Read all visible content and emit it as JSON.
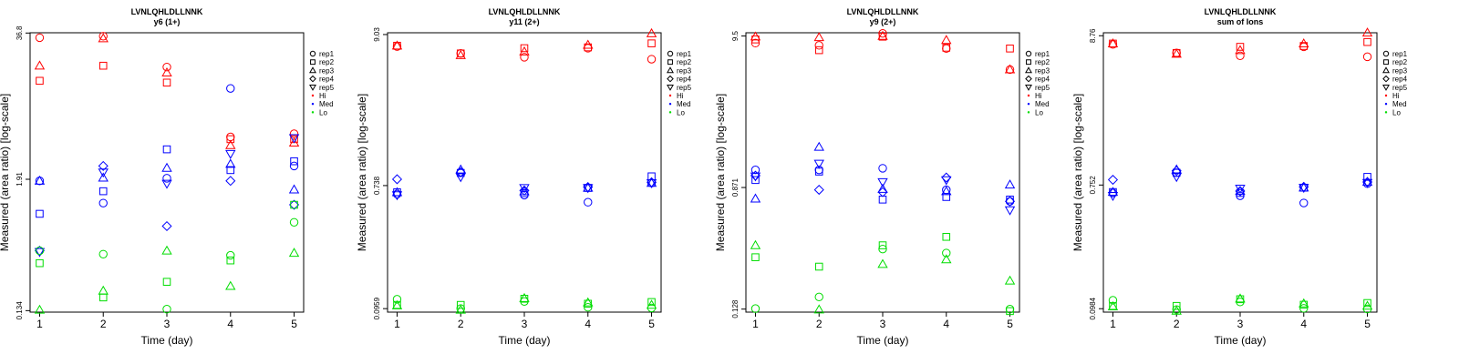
{
  "figure": {
    "background": "#ffffff",
    "colors": {
      "Hi": "#ff0000",
      "Med": "#0000ff",
      "Lo": "#00dd00"
    }
  },
  "legend": [
    {
      "label": "rep1",
      "shape": "circle"
    },
    {
      "label": "rep2",
      "shape": "square"
    },
    {
      "label": "rep3",
      "shape": "triangle-up"
    },
    {
      "label": "rep4",
      "shape": "diamond"
    },
    {
      "label": "rep5",
      "shape": "triangle-down"
    },
    {
      "label": "Hi",
      "shape": "dot",
      "color": "#ff0000"
    },
    {
      "label": "Med",
      "shape": "dot",
      "color": "#0000ff"
    },
    {
      "label": "Lo",
      "shape": "dot",
      "color": "#00dd00"
    }
  ],
  "chart_data": [
    {
      "type": "scatter",
      "title": "LVNLQHLDLLNNK",
      "subtitle": "y6 (1+)",
      "xlabel": "Time (day)",
      "ylabel": "Measured (area ratio) [log-scale]",
      "yscale": "log",
      "ylim": [
        0.13,
        37
      ],
      "xlim": [
        0.85,
        5.15
      ],
      "xticks": [
        "1",
        "2",
        "3",
        "4",
        "5"
      ],
      "yticks": [
        {
          "value": 36.8,
          "label": "36.8"
        },
        {
          "value": 1.91,
          "label": "1.91"
        },
        {
          "value": 0.134,
          "label": "0.134"
        }
      ],
      "legend_position": "right",
      "grid": false,
      "series": [
        {
          "name": "Hi",
          "rep": "rep1",
          "x": [
            1,
            2,
            3,
            4,
            5
          ],
          "y": [
            33.5,
            34.5,
            18.5,
            4.5,
            4.8
          ]
        },
        {
          "name": "Hi",
          "rep": "rep2",
          "x": [
            1,
            2,
            3,
            4,
            5
          ],
          "y": [
            14.0,
            19.0,
            13.5,
            4.3,
            4.3
          ]
        },
        {
          "name": "Hi",
          "rep": "rep3",
          "x": [
            1,
            2,
            3,
            4,
            5
          ],
          "y": [
            19.0,
            33.0,
            16.5,
            3.8,
            4.0
          ]
        },
        {
          "name": "Med",
          "rep": "rep1",
          "x": [
            1,
            2,
            3,
            4,
            5
          ],
          "y": [
            1.85,
            1.18,
            1.95,
            12.0,
            2.5
          ]
        },
        {
          "name": "Med",
          "rep": "rep2",
          "x": [
            1,
            2,
            3,
            4,
            5
          ],
          "y": [
            0.95,
            1.5,
            3.5,
            2.3,
            2.75
          ]
        },
        {
          "name": "Med",
          "rep": "rep3",
          "x": [
            1,
            2,
            3,
            4,
            5
          ],
          "y": [
            1.85,
            1.97,
            2.4,
            2.6,
            1.55
          ]
        },
        {
          "name": "Med",
          "rep": "rep4",
          "x": [
            1,
            2,
            3,
            4,
            5
          ],
          "y": [
            0.45,
            2.5,
            0.74,
            1.85,
            1.14
          ]
        },
        {
          "name": "Med",
          "rep": "rep5",
          "x": [
            1,
            2,
            3,
            4,
            5
          ],
          "y": [
            0.44,
            2.2,
            1.75,
            3.2,
            4.4
          ]
        },
        {
          "name": "Lo",
          "rep": "rep1",
          "x": [
            1,
            2,
            3,
            4,
            5
          ],
          "y": [
            0.45,
            0.42,
            0.138,
            0.41,
            0.8
          ]
        },
        {
          "name": "Lo",
          "rep": "rep2",
          "x": [
            1,
            2,
            3,
            4,
            5
          ],
          "y": [
            0.35,
            0.175,
            0.24,
            0.37,
            1.14
          ]
        },
        {
          "name": "Lo",
          "rep": "rep3",
          "x": [
            1,
            2,
            3,
            4,
            5
          ],
          "y": [
            0.136,
            0.2,
            0.45,
            0.22,
            0.43
          ]
        }
      ]
    },
    {
      "type": "scatter",
      "title": "LVNLQHLDLLNNK",
      "subtitle": "y11 (2+)",
      "xlabel": "Time (day)",
      "ylabel": "Measured (area ratio) [log-scale]",
      "yscale": "log",
      "ylim": [
        0.0905,
        9.3
      ],
      "xlim": [
        0.85,
        5.15
      ],
      "xticks": [
        "1",
        "2",
        "3",
        "4",
        "5"
      ],
      "yticks": [
        {
          "value": 9.03,
          "label": "9.03"
        },
        {
          "value": 0.738,
          "label": "0.738"
        },
        {
          "value": 0.0959,
          "label": "0.0959"
        }
      ],
      "legend_position": "right",
      "grid": false,
      "series": [
        {
          "name": "Hi",
          "rep": "rep1",
          "x": [
            1,
            2,
            3,
            4,
            5
          ],
          "y": [
            7.4,
            6.6,
            6.2,
            7.2,
            6.0
          ]
        },
        {
          "name": "Hi",
          "rep": "rep2",
          "x": [
            1,
            2,
            3,
            4,
            5
          ],
          "y": [
            7.5,
            6.6,
            7.2,
            7.3,
            7.8
          ]
        },
        {
          "name": "Hi",
          "rep": "rep3",
          "x": [
            1,
            2,
            3,
            4,
            5
          ],
          "y": [
            7.5,
            6.4,
            6.8,
            7.6,
            9.2
          ]
        },
        {
          "name": "Med",
          "rep": "rep1",
          "x": [
            1,
            2,
            3,
            4,
            5
          ],
          "y": [
            0.64,
            0.92,
            0.63,
            0.56,
            0.77
          ]
        },
        {
          "name": "Med",
          "rep": "rep2",
          "x": [
            1,
            2,
            3,
            4,
            5
          ],
          "y": [
            0.66,
            0.91,
            0.65,
            0.71,
            0.86
          ]
        },
        {
          "name": "Med",
          "rep": "rep3",
          "x": [
            1,
            2,
            3,
            4,
            5
          ],
          "y": [
            0.66,
            0.96,
            0.67,
            0.71,
            0.77
          ]
        },
        {
          "name": "Med",
          "rep": "rep4",
          "x": [
            1,
            2,
            3,
            4,
            5
          ],
          "y": [
            0.82,
            0.92,
            0.68,
            0.72,
            0.78
          ]
        },
        {
          "name": "Med",
          "rep": "rep5",
          "x": [
            1,
            2,
            3,
            4,
            5
          ],
          "y": [
            0.63,
            0.85,
            0.71,
            0.71,
            0.77
          ]
        },
        {
          "name": "Lo",
          "rep": "rep1",
          "x": [
            1,
            2,
            3,
            4,
            5
          ],
          "y": [
            0.112,
            0.096,
            0.108,
            0.098,
            0.097
          ]
        },
        {
          "name": "Lo",
          "rep": "rep2",
          "x": [
            1,
            2,
            3,
            4,
            5
          ],
          "y": [
            0.102,
            0.102,
            0.113,
            0.104,
            0.107
          ]
        },
        {
          "name": "Lo",
          "rep": "rep3",
          "x": [
            1,
            2,
            3,
            4,
            5
          ],
          "y": [
            0.101,
            0.094,
            0.114,
            0.106,
            0.102
          ]
        }
      ]
    },
    {
      "type": "scatter",
      "title": "LVNLQHLDLLNNK",
      "subtitle": "y9 (2+)",
      "xlabel": "Time (day)",
      "ylabel": "Measured (area ratio) [log-scale]",
      "yscale": "log",
      "ylim": [
        0.122,
        10.0
      ],
      "xlim": [
        0.85,
        5.15
      ],
      "xticks": [
        "1",
        "2",
        "3",
        "4",
        "5"
      ],
      "yticks": [
        {
          "value": 9.5,
          "label": "9.5"
        },
        {
          "value": 0.871,
          "label": "0.871"
        },
        {
          "value": 0.128,
          "label": "0.128"
        }
      ],
      "legend_position": "right",
      "grid": false,
      "series": [
        {
          "name": "Hi",
          "rep": "rep1",
          "x": [
            1,
            2,
            3,
            4,
            5
          ],
          "y": [
            8.5,
            8.2,
            9.9,
            7.8,
            5.6
          ]
        },
        {
          "name": "Hi",
          "rep": "rep2",
          "x": [
            1,
            2,
            3,
            4,
            5
          ],
          "y": [
            9.0,
            7.6,
            9.4,
            7.9,
            7.8
          ]
        },
        {
          "name": "Hi",
          "rep": "rep3",
          "x": [
            1,
            2,
            3,
            4,
            5
          ],
          "y": [
            9.4,
            9.3,
            9.5,
            8.9,
            5.6
          ]
        },
        {
          "name": "Med",
          "rep": "rep1",
          "x": [
            1,
            2,
            3,
            4,
            5
          ],
          "y": [
            1.15,
            1.15,
            1.18,
            0.84,
            0.7
          ]
        },
        {
          "name": "Med",
          "rep": "rep2",
          "x": [
            1,
            2,
            3,
            4,
            5
          ],
          "y": [
            0.98,
            1.12,
            0.72,
            0.75,
            0.72
          ]
        },
        {
          "name": "Med",
          "rep": "rep3",
          "x": [
            1,
            2,
            3,
            4,
            5
          ],
          "y": [
            0.73,
            1.65,
            0.85,
            0.82,
            0.91
          ]
        },
        {
          "name": "Med",
          "rep": "rep4",
          "x": [
            1,
            2,
            3,
            4,
            5
          ],
          "y": [
            1.05,
            0.84,
            0.81,
            1.02,
            0.7
          ]
        },
        {
          "name": "Med",
          "rep": "rep5",
          "x": [
            1,
            2,
            3,
            4,
            5
          ],
          "y": [
            1.04,
            1.27,
            0.95,
            0.98,
            0.61
          ]
        },
        {
          "name": "Lo",
          "rep": "rep1",
          "x": [
            1,
            2,
            3,
            4,
            5
          ],
          "y": [
            0.129,
            0.155,
            0.33,
            0.31,
            0.128
          ]
        },
        {
          "name": "Lo",
          "rep": "rep2",
          "x": [
            1,
            2,
            3,
            4,
            5
          ],
          "y": [
            0.29,
            0.25,
            0.35,
            0.4,
            0.124
          ]
        },
        {
          "name": "Lo",
          "rep": "rep3",
          "x": [
            1,
            2,
            3,
            4,
            5
          ],
          "y": [
            0.35,
            0.127,
            0.26,
            0.28,
            0.2
          ]
        }
      ]
    },
    {
      "type": "scatter",
      "title": "LVNLQHLDLLNNK",
      "subtitle": "sum of Ions",
      "xlabel": "Time (day)",
      "ylabel": "Measured (area ratio) [log-scale]",
      "yscale": "log",
      "ylim": [
        0.093,
        9.2
      ],
      "xlim": [
        0.85,
        5.15
      ],
      "xticks": [
        "1",
        "2",
        "3",
        "4",
        "5"
      ],
      "yticks": [
        {
          "value": 8.76,
          "label": "8.76"
        },
        {
          "value": 0.752,
          "label": "0.752"
        },
        {
          "value": 0.0984,
          "label": "0.0984"
        }
      ],
      "legend_position": "right",
      "grid": false,
      "series": [
        {
          "name": "Hi",
          "rep": "rep1",
          "x": [
            1,
            2,
            3,
            4,
            5
          ],
          "y": [
            7.6,
            6.6,
            6.3,
            7.3,
            6.2
          ]
        },
        {
          "name": "Hi",
          "rep": "rep2",
          "x": [
            1,
            2,
            3,
            4,
            5
          ],
          "y": [
            7.7,
            6.6,
            7.3,
            7.4,
            7.9
          ]
        },
        {
          "name": "Hi",
          "rep": "rep3",
          "x": [
            1,
            2,
            3,
            4,
            5
          ],
          "y": [
            7.7,
            6.5,
            6.9,
            7.7,
            9.2
          ]
        },
        {
          "name": "Med",
          "rep": "rep1",
          "x": [
            1,
            2,
            3,
            4,
            5
          ],
          "y": [
            0.66,
            0.92,
            0.63,
            0.56,
            0.77
          ]
        },
        {
          "name": "Med",
          "rep": "rep2",
          "x": [
            1,
            2,
            3,
            4,
            5
          ],
          "y": [
            0.67,
            0.92,
            0.66,
            0.72,
            0.86
          ]
        },
        {
          "name": "Med",
          "rep": "rep3",
          "x": [
            1,
            2,
            3,
            4,
            5
          ],
          "y": [
            0.67,
            0.97,
            0.68,
            0.72,
            0.79
          ]
        },
        {
          "name": "Med",
          "rep": "rep4",
          "x": [
            1,
            2,
            3,
            4,
            5
          ],
          "y": [
            0.82,
            0.95,
            0.68,
            0.73,
            0.79
          ]
        },
        {
          "name": "Med",
          "rep": "rep5",
          "x": [
            1,
            2,
            3,
            4,
            5
          ],
          "y": [
            0.63,
            0.86,
            0.71,
            0.72,
            0.78
          ]
        },
        {
          "name": "Lo",
          "rep": "rep1",
          "x": [
            1,
            2,
            3,
            4,
            5
          ],
          "y": [
            0.113,
            0.097,
            0.11,
            0.099,
            0.098
          ]
        },
        {
          "name": "Lo",
          "rep": "rep2",
          "x": [
            1,
            2,
            3,
            4,
            5
          ],
          "y": [
            0.103,
            0.103,
            0.115,
            0.105,
            0.108
          ]
        },
        {
          "name": "Lo",
          "rep": "rep3",
          "x": [
            1,
            2,
            3,
            4,
            5
          ],
          "y": [
            0.102,
            0.095,
            0.116,
            0.107,
            0.103
          ]
        }
      ]
    }
  ]
}
